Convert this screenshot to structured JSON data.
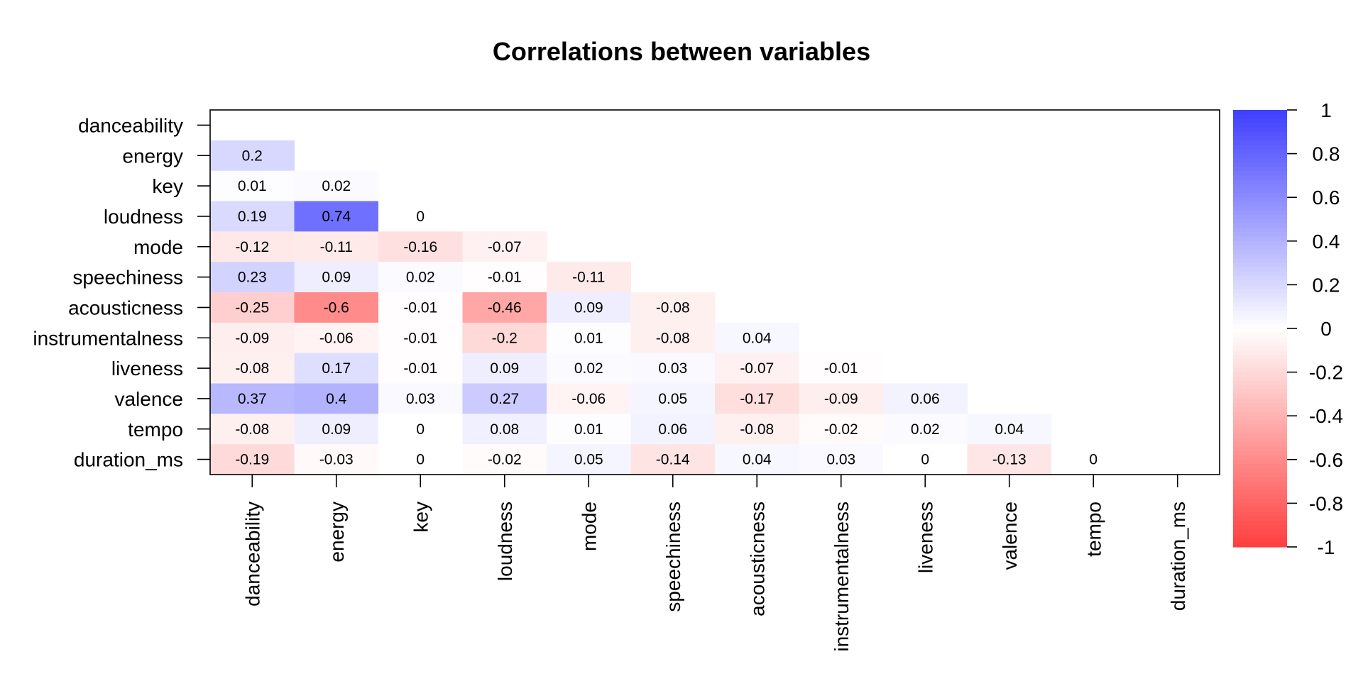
{
  "chart_data": {
    "type": "heatmap",
    "title": "Correlations between variables",
    "variables": [
      "danceability",
      "energy",
      "key",
      "loudness",
      "mode",
      "speechiness",
      "acousticness",
      "instrumentalness",
      "liveness",
      "valence",
      "tempo",
      "duration_ms"
    ],
    "matrix": [
      [],
      [
        0.2
      ],
      [
        0.01,
        0.02
      ],
      [
        0.19,
        0.74,
        0
      ],
      [
        -0.12,
        -0.11,
        -0.16,
        -0.07
      ],
      [
        0.23,
        0.09,
        0.02,
        -0.01,
        -0.11
      ],
      [
        -0.25,
        -0.6,
        -0.01,
        -0.46,
        0.09,
        -0.08
      ],
      [
        -0.09,
        -0.06,
        -0.01,
        -0.2,
        0.01,
        -0.08,
        0.04
      ],
      [
        -0.08,
        0.17,
        -0.01,
        0.09,
        0.02,
        0.03,
        -0.07,
        -0.01
      ],
      [
        0.37,
        0.4,
        0.03,
        0.27,
        -0.06,
        0.05,
        -0.17,
        -0.09,
        0.06
      ],
      [
        -0.08,
        0.09,
        0,
        0.08,
        0.01,
        0.06,
        -0.08,
        -0.02,
        0.02,
        0.04
      ],
      [
        -0.19,
        -0.03,
        0,
        -0.02,
        0.05,
        -0.14,
        0.04,
        0.03,
        0,
        -0.13,
        0
      ]
    ],
    "colorbar": {
      "range": [
        -1,
        1
      ],
      "ticks": [
        1,
        0.8,
        0.6,
        0.4,
        0.2,
        0,
        -0.2,
        -0.4,
        -0.6,
        -0.8,
        -1
      ],
      "positive_color": "#3e3eff",
      "negative_color": "#ff3e3e",
      "zero_color": "#ffffff"
    },
    "grid": false
  }
}
